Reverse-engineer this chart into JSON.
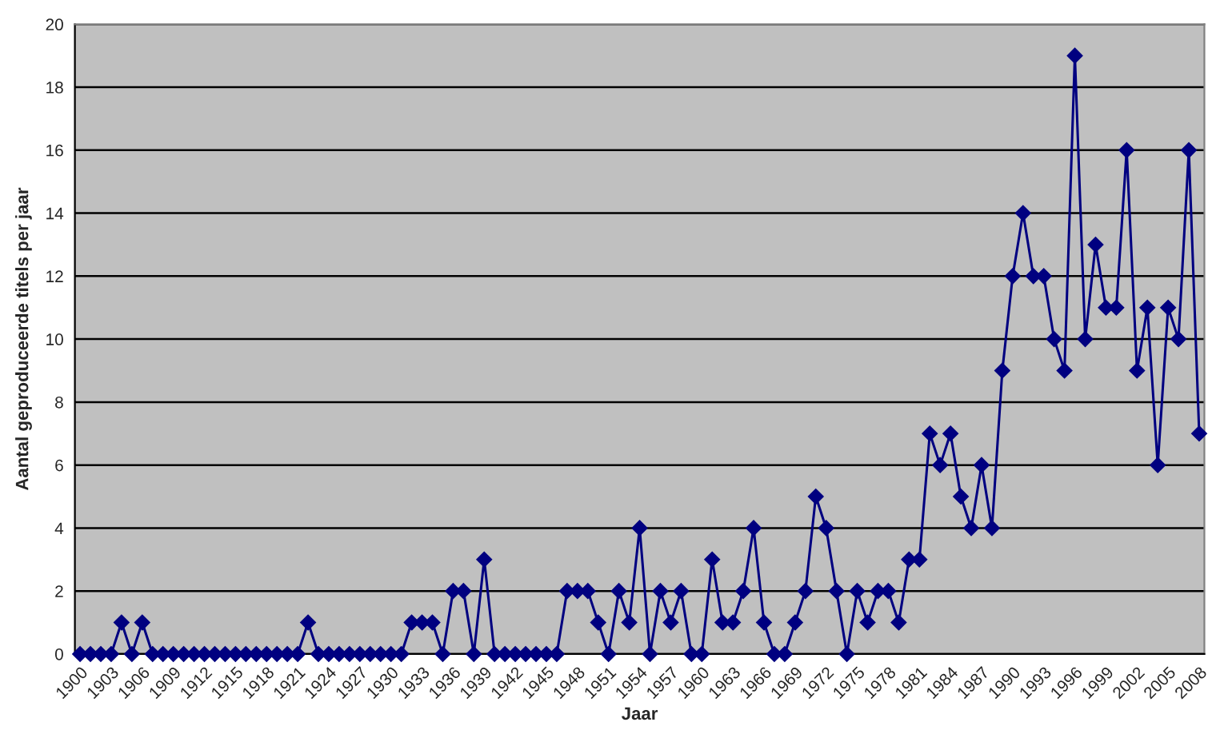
{
  "chart_data": {
    "type": "line",
    "xlabel": "Jaar",
    "ylabel": "Aantal geproduceerde titels per jaar",
    "categories": [
      "1900",
      null,
      null,
      "1903",
      null,
      null,
      "1906",
      null,
      null,
      "1909",
      null,
      null,
      "1912",
      null,
      null,
      "1915",
      null,
      null,
      "1918",
      null,
      null,
      "1921",
      null,
      null,
      "1924",
      null,
      null,
      "1927",
      null,
      null,
      "1930",
      null,
      null,
      "1933",
      null,
      null,
      "1936",
      null,
      null,
      "1939",
      null,
      null,
      "1942",
      null,
      null,
      "1945",
      null,
      null,
      "1948",
      null,
      null,
      "1951",
      null,
      null,
      "1954",
      null,
      null,
      "1957",
      null,
      null,
      "1960",
      null,
      null,
      "1963",
      null,
      null,
      "1966",
      null,
      null,
      "1969",
      null,
      null,
      "1972",
      null,
      null,
      "1975",
      null,
      null,
      "1978",
      null,
      null,
      "1981",
      null,
      null,
      "1984",
      null,
      null,
      "1987",
      null,
      null,
      "1990",
      null,
      null,
      "1993",
      null,
      null,
      "1996",
      null,
      null,
      "1999",
      null,
      null,
      "2002",
      null,
      null,
      "2005",
      null,
      null,
      "2008"
    ],
    "series": [
      {
        "color": "#000080",
        "values": [
          0,
          0,
          0,
          0,
          1,
          0,
          1,
          0,
          0,
          0,
          0,
          0,
          0,
          0,
          0,
          0,
          0,
          0,
          0,
          0,
          0,
          0,
          1,
          0,
          0,
          0,
          0,
          0,
          0,
          0,
          0,
          0,
          1,
          1,
          1,
          0,
          2,
          2,
          0,
          3,
          0,
          0,
          0,
          0,
          0,
          0,
          0,
          2,
          2,
          2,
          1,
          0,
          2,
          1,
          4,
          0,
          2,
          1,
          2,
          0,
          0,
          3,
          1,
          1,
          2,
          4,
          1,
          0,
          0,
          1,
          2,
          5,
          4,
          2,
          0,
          2,
          1,
          2,
          2,
          1,
          3,
          3,
          7,
          6,
          7,
          5,
          4,
          6,
          4,
          9,
          12,
          14,
          12,
          12,
          10,
          9,
          19,
          10,
          13,
          11,
          11,
          16,
          9,
          11,
          6,
          11,
          10,
          16,
          7
        ]
      }
    ],
    "ylim": [
      0,
      20
    ],
    "yticks": [
      0,
      2,
      4,
      6,
      8,
      10,
      12,
      14,
      16,
      18,
      20
    ],
    "grid": "y",
    "legend": false,
    "marker": "diamond",
    "line_style": "solid"
  }
}
